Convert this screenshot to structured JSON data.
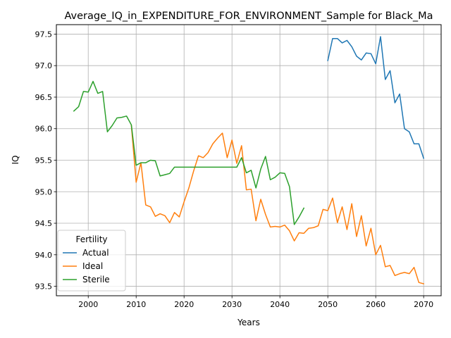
{
  "chart_data": {
    "type": "line",
    "title": "Average_IQ_in_EXPENDITURE_FOR_ENVIRONMENT_Sample for Black_Ma",
    "xlabel": "Years",
    "ylabel": "IQ",
    "xlim": [
      1993.35,
      2073.65
    ],
    "ylim": [
      93.35,
      97.65
    ],
    "xticks": [
      2000,
      2010,
      2020,
      2030,
      2040,
      2050,
      2060,
      2070
    ],
    "yticks": [
      93.5,
      94.0,
      94.5,
      95.0,
      95.5,
      96.0,
      96.5,
      97.0,
      97.5
    ],
    "grid": true,
    "legend": {
      "title": "Fertility",
      "position": "lower-left"
    },
    "series": [
      {
        "name": "Actual",
        "color": "#1f77b4",
        "x": [
          2050,
          2051,
          2052,
          2053,
          2054,
          2055,
          2056,
          2057,
          2058,
          2059,
          2060,
          2061,
          2062,
          2063,
          2064,
          2065,
          2066,
          2067,
          2068,
          2069,
          2070
        ],
        "y": [
          97.08,
          97.43,
          97.43,
          97.36,
          97.4,
          97.3,
          97.15,
          97.09,
          97.2,
          97.19,
          97.03,
          97.46,
          96.78,
          96.92,
          96.41,
          96.55,
          96.0,
          95.95,
          95.76,
          95.76,
          95.53
        ]
      },
      {
        "name": "Ideal",
        "color": "#ff7f0e",
        "x": [
          2009,
          2010,
          2011,
          2012,
          2013,
          2014,
          2015,
          2016,
          2017,
          2018,
          2019,
          2020,
          2021,
          2022,
          2023,
          2024,
          2025,
          2026,
          2027,
          2028,
          2029,
          2030,
          2031,
          2032,
          2033,
          2034,
          2035,
          2036,
          2037,
          2038,
          2039,
          2040,
          2041,
          2042,
          2043,
          2044,
          2045,
          2046,
          2047,
          2048,
          2049,
          2050,
          2051,
          2052,
          2053,
          2054,
          2055,
          2056,
          2057,
          2058,
          2059,
          2060,
          2061,
          2062,
          2063,
          2064,
          2065,
          2066,
          2067,
          2068,
          2069,
          2070
        ],
        "y": [
          96.05,
          95.15,
          95.46,
          94.79,
          94.76,
          94.61,
          94.65,
          94.62,
          94.51,
          94.67,
          94.6,
          94.84,
          95.06,
          95.33,
          95.57,
          95.54,
          95.62,
          95.76,
          95.85,
          95.93,
          95.54,
          95.82,
          95.45,
          95.73,
          95.03,
          95.04,
          94.54,
          94.88,
          94.64,
          94.44,
          94.45,
          94.44,
          94.47,
          94.38,
          94.22,
          94.35,
          94.34,
          94.42,
          94.43,
          94.46,
          94.72,
          94.7,
          94.9,
          94.51,
          94.76,
          94.4,
          94.81,
          94.29,
          94.62,
          94.14,
          94.42,
          94.0,
          94.15,
          93.81,
          93.83,
          93.67,
          93.7,
          93.72,
          93.7,
          93.8,
          93.56,
          93.54
        ]
      },
      {
        "name": "Sterile",
        "color": "#2ca02c",
        "x": [
          1997,
          1998,
          1999,
          2000,
          2001,
          2002,
          2003,
          2004,
          2005,
          2006,
          2007,
          2008,
          2009,
          2010,
          2011,
          2012,
          2013,
          2014,
          2015,
          2016,
          2017,
          2018,
          2019,
          2020,
          2021,
          2022,
          2023,
          2024,
          2025,
          2026,
          2027,
          2028,
          2029,
          2030,
          2031,
          2032,
          2033,
          2034,
          2035,
          2036,
          2037,
          2038,
          2039,
          2040,
          2041,
          2042,
          2043,
          2044,
          2045
        ],
        "y": [
          96.28,
          96.35,
          96.59,
          96.58,
          96.75,
          96.56,
          96.59,
          95.95,
          96.05,
          96.17,
          96.18,
          96.2,
          96.06,
          95.42,
          95.46,
          95.46,
          95.5,
          95.49,
          95.25,
          95.27,
          95.29,
          95.39,
          95.39,
          95.39,
          95.39,
          95.39,
          95.39,
          95.39,
          95.39,
          95.39,
          95.39,
          95.39,
          95.39,
          95.39,
          95.39,
          95.54,
          95.3,
          95.34,
          95.06,
          95.36,
          95.56,
          95.19,
          95.23,
          95.3,
          95.29,
          95.08,
          94.48,
          94.6,
          94.74
        ]
      }
    ]
  }
}
